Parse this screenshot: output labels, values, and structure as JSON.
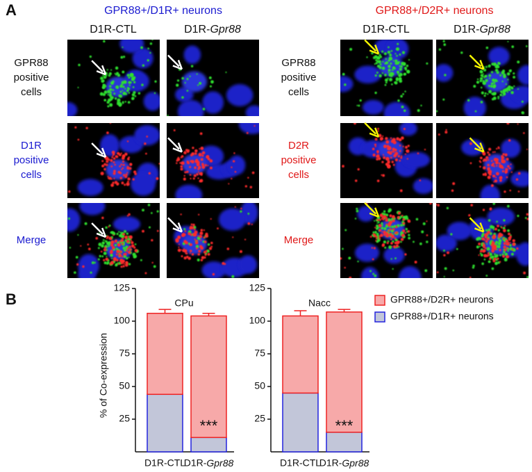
{
  "panel_a": {
    "label": "A",
    "groups": [
      {
        "title": "GPR88+/D1R+ neurons",
        "columns": [
          "D1R-CTL",
          "D1R-Gpr88"
        ],
        "rows": [
          [
            "GPR88",
            "positive",
            "cells"
          ],
          [
            "D1R",
            "positive",
            "cells"
          ],
          [
            "Merge"
          ]
        ]
      },
      {
        "title": "GPR88+/D2R+ neurons",
        "columns": [
          "D1R-CTL",
          "D1R-Gpr88"
        ],
        "rows": [
          [
            "GPR88",
            "positive",
            "cells"
          ],
          [
            "D2R",
            "positive",
            "cells"
          ],
          [
            "Merge"
          ]
        ]
      }
    ]
  },
  "panel_b": {
    "label": "B"
  },
  "chart_data": [
    {
      "type": "stacked_bar",
      "title": "CPu",
      "ylabel": "% of Co-expression",
      "categories": [
        "D1R-CTL",
        "D1R-Gpr88"
      ],
      "ylim": [
        0,
        125
      ],
      "yticks": [
        25,
        50,
        75,
        100,
        125
      ],
      "annotation": "***",
      "series": [
        {
          "color": "#c2c6d9",
          "edgecolor": "#2222dd",
          "values": [
            44,
            11
          ],
          "errors": [
            2,
            2
          ]
        },
        {
          "color": "#f7a9a9",
          "edgecolor": "#ee2222",
          "values": [
            62,
            93
          ],
          "errors": [
            3,
            2
          ]
        }
      ]
    },
    {
      "type": "stacked_bar",
      "title": "Nacc",
      "categories": [
        "D1R-CTL",
        "D1R-Gpr88"
      ],
      "ylim": [
        0,
        125
      ],
      "yticks": [
        25,
        50,
        75,
        100,
        125
      ],
      "annotation": "***",
      "series": [
        {
          "name": "GPR88+/D1R+ neurons",
          "color": "#c2c6d9",
          "edgecolor": "#2222dd",
          "values": [
            45,
            15
          ],
          "errors": [
            3,
            2
          ]
        },
        {
          "name": "GPR88+/D2R+ neurons",
          "color": "#f7a9a9",
          "edgecolor": "#ee2222",
          "values": [
            59,
            92
          ],
          "errors": [
            4,
            2
          ]
        }
      ]
    }
  ]
}
